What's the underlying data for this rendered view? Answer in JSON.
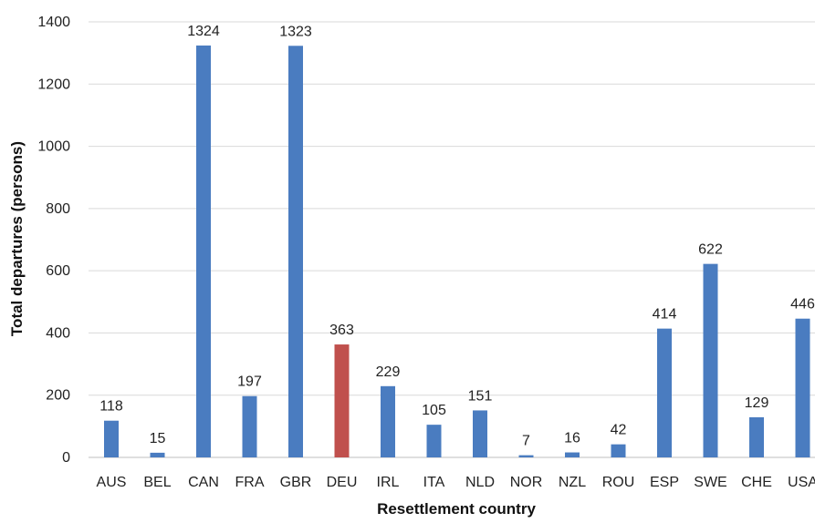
{
  "colors": {
    "bar": "#4a7cc0",
    "highlight": "#c0504d",
    "grid": "#d9d9d9",
    "axis": "#bfbfbf"
  },
  "chart_data": {
    "type": "bar",
    "title": "",
    "xlabel": "Resettlement country",
    "ylabel": "Total departures (persons)",
    "ylim": [
      0,
      1400
    ],
    "yticks": [
      0,
      200,
      400,
      600,
      800,
      1000,
      1200,
      1400
    ],
    "grid": true,
    "legend": "none",
    "highlight_category": "DEU",
    "categories": [
      "AUS",
      "BEL",
      "CAN",
      "FRA",
      "GBR",
      "DEU",
      "IRL",
      "ITA",
      "NLD",
      "NOR",
      "NZL",
      "ROU",
      "ESP",
      "SWE",
      "CHE",
      "USA"
    ],
    "values": [
      118,
      15,
      1324,
      197,
      1323,
      363,
      229,
      105,
      151,
      7,
      16,
      42,
      414,
      622,
      129,
      446
    ],
    "data_labels": [
      "118",
      "15",
      "1324",
      "197",
      "1323",
      "363",
      "229",
      "105",
      "151",
      "7",
      "16",
      "42",
      "414",
      "622",
      "129",
      "446"
    ]
  }
}
